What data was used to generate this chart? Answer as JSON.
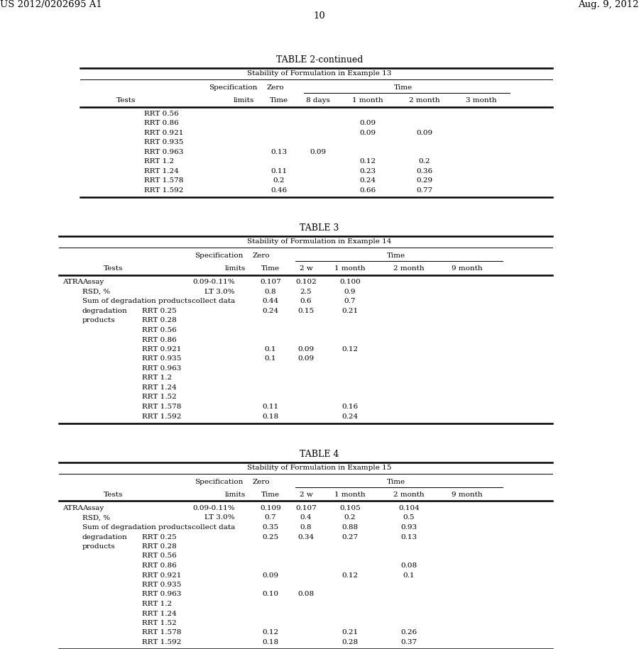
{
  "header_left": "US 2012/0202695 A1",
  "header_right": "Aug. 9, 2012",
  "page_number": "10",
  "background_color": "#ffffff"
}
